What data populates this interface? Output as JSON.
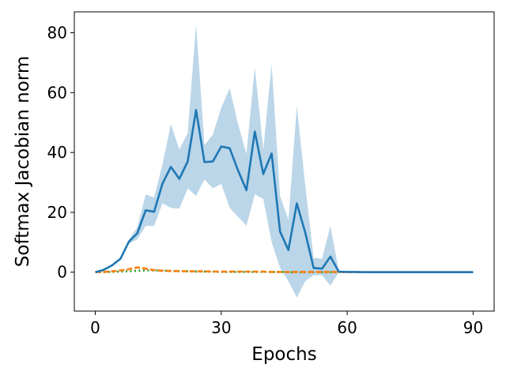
{
  "chart_data": {
    "type": "line",
    "title": "",
    "xlabel": "Epochs",
    "ylabel": "Softmax Jacobian norm",
    "xlim": [
      -5,
      95
    ],
    "ylim": [
      -13,
      87
    ],
    "xticks": [
      0,
      30,
      60,
      90
    ],
    "yticks": [
      0,
      20,
      40,
      60,
      80
    ],
    "grid": false,
    "legend": "none",
    "series": [
      {
        "color": "#1f77b4",
        "style": "solid",
        "band_color": "#1f77b4",
        "x": [
          0,
          2,
          4,
          6,
          8,
          10,
          12,
          14,
          16,
          18,
          20,
          22,
          24,
          26,
          28,
          30,
          32,
          34,
          36,
          38,
          40,
          42,
          44,
          46,
          48,
          50,
          52,
          54,
          56,
          58,
          60,
          62,
          64,
          66,
          68,
          70,
          72,
          74,
          76,
          78,
          80,
          82,
          84,
          86,
          88,
          90
        ],
        "y": [
          0,
          0.8,
          2.3,
          4.5,
          10.2,
          13,
          20.7,
          20.2,
          29.6,
          35.2,
          31.2,
          37,
          54.2,
          36.8,
          37,
          42,
          41.4,
          34,
          27.4,
          47,
          32.8,
          39.7,
          13.6,
          7.4,
          23,
          13.2,
          1.4,
          1.2,
          5.2,
          0.2,
          0.1,
          0.1,
          0,
          0,
          0,
          0,
          0,
          0,
          0,
          0,
          0,
          0,
          0,
          0,
          0,
          0
        ],
        "lower": [
          0,
          0.6,
          2,
          4.2,
          9.5,
          11,
          15.5,
          15.5,
          23,
          21.5,
          21.2,
          28,
          25.5,
          31,
          28,
          29.5,
          21.5,
          18.5,
          15.5,
          26,
          24.5,
          10,
          1.5,
          -3,
          -8.5,
          -3,
          -1,
          -1,
          -4.5,
          0,
          0,
          0,
          0,
          0,
          0,
          0,
          0,
          0,
          0,
          0,
          0,
          0,
          0,
          0,
          0,
          0
        ],
        "upper": [
          0,
          1,
          2.6,
          4.8,
          10.9,
          15,
          26,
          25,
          36,
          49.5,
          41,
          46.5,
          83,
          42.5,
          46,
          55,
          61.5,
          49.5,
          39.5,
          68.5,
          41,
          69.5,
          25.5,
          17.5,
          55.5,
          29,
          4.8,
          4.5,
          15.5,
          0.4,
          0.2,
          0.2,
          0,
          0,
          0,
          0,
          0,
          0,
          0,
          0,
          0,
          0,
          0,
          0,
          0,
          0
        ]
      },
      {
        "color": "#ff7f0e",
        "style": "dashed",
        "x": [
          0,
          2,
          4,
          6,
          8,
          10,
          12,
          14,
          16,
          18,
          20,
          22,
          24,
          26,
          28,
          30,
          32,
          34,
          36,
          38,
          40,
          42,
          44,
          46,
          48,
          50,
          52,
          54,
          56,
          58,
          60,
          62,
          64,
          66,
          68,
          70,
          72,
          74,
          76,
          78,
          80,
          82,
          84,
          86,
          88,
          90
        ],
        "y": [
          0,
          0.1,
          0.3,
          0.6,
          1,
          1.6,
          1.2,
          0.7,
          0.5,
          0.4,
          0.4,
          0.3,
          0.3,
          0.3,
          0.2,
          0.2,
          0.2,
          0.2,
          0.2,
          0.2,
          0.2,
          0.1,
          0.1,
          0.1,
          0.1,
          0.1,
          0.1,
          0.1,
          0.1,
          0.1,
          0,
          0,
          0,
          0,
          0,
          0,
          0,
          0,
          0,
          0,
          0,
          0,
          0,
          0,
          0,
          0
        ]
      },
      {
        "color": "#2ca02c",
        "style": "dotted",
        "x": [
          0,
          2,
          4,
          6,
          8,
          10,
          12,
          14,
          16,
          18,
          20,
          22,
          24,
          26,
          28,
          30,
          32,
          34,
          36,
          38,
          40,
          42,
          44,
          46,
          48,
          50,
          52,
          54,
          56,
          58,
          60,
          62,
          64,
          66,
          68,
          70,
          72,
          74,
          76,
          78,
          80,
          82,
          84,
          86,
          88,
          90
        ],
        "y": [
          0,
          0.1,
          0.1,
          0.2,
          0.3,
          0.5,
          0.6,
          0.6,
          0.5,
          0.4,
          0.3,
          0.3,
          0.2,
          0.2,
          0.2,
          0.1,
          0.1,
          0.1,
          0.1,
          0.1,
          0.1,
          0.1,
          0.1,
          0,
          0,
          0,
          0,
          0,
          0,
          0,
          0,
          0,
          0,
          0,
          0,
          0,
          0,
          0,
          0,
          0,
          0,
          0,
          0,
          0,
          0,
          0
        ]
      }
    ]
  }
}
